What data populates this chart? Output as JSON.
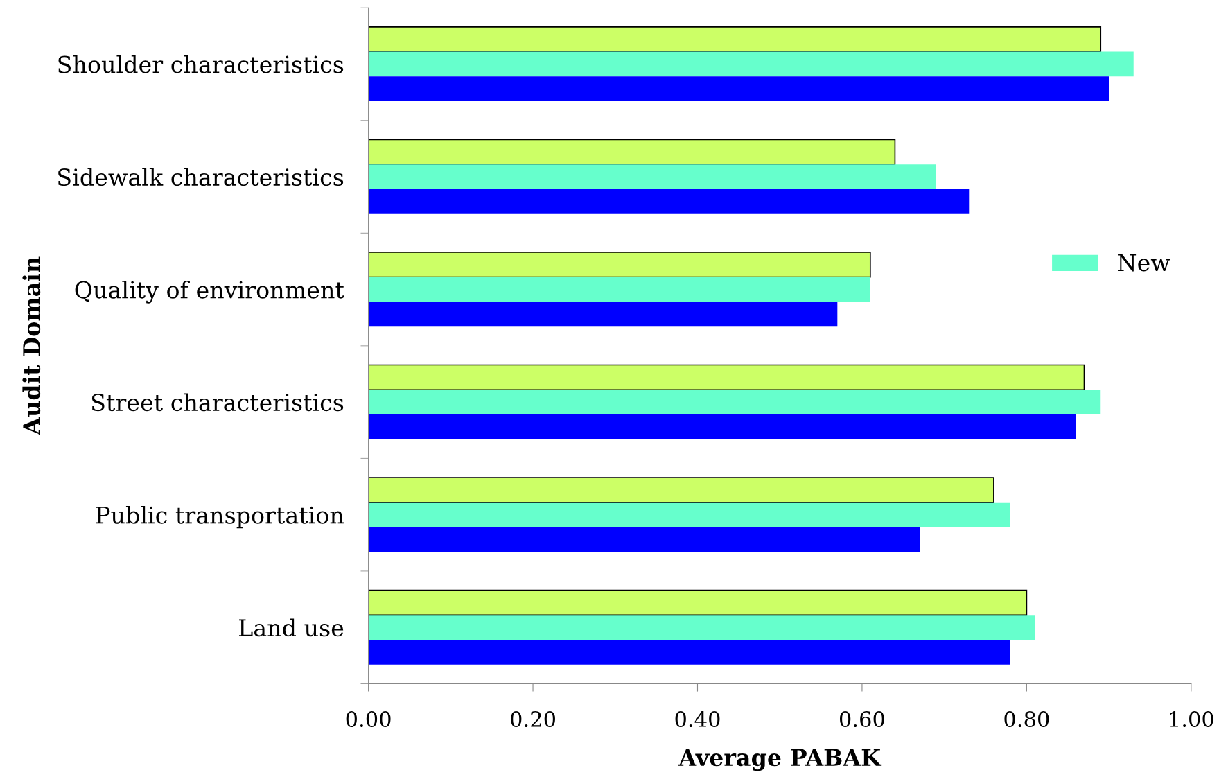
{
  "chart_data": {
    "type": "bar",
    "orientation": "horizontal",
    "xlabel": "Average PABAK",
    "ylabel": "Audit Domain",
    "categories": [
      "Shoulder characteristics",
      "Sidewalk characteristics",
      "Quality of environment",
      "Street characteristics",
      "Public transportation",
      "Land use"
    ],
    "series": [
      {
        "color": "#ccff66",
        "values": [
          0.89,
          0.64,
          0.61,
          0.87,
          0.76,
          0.8
        ]
      },
      {
        "name": "New",
        "color": "#66ffcc",
        "values": [
          0.93,
          0.69,
          0.61,
          0.89,
          0.78,
          0.81
        ]
      },
      {
        "color": "#0000ff",
        "values": [
          0.9,
          0.73,
          0.57,
          0.86,
          0.67,
          0.78
        ]
      }
    ],
    "xlim": [
      0,
      1
    ],
    "xticks": [
      {
        "value": 0,
        "label": "0.00"
      },
      {
        "value": 0.2,
        "label": "0.20"
      },
      {
        "value": 0.4,
        "label": "0.40"
      },
      {
        "value": 0.6,
        "label": "0.60"
      },
      {
        "value": 0.8,
        "label": "0.80"
      },
      {
        "value": 1,
        "label": "1.00"
      }
    ],
    "grid": false,
    "legend": "right"
  }
}
